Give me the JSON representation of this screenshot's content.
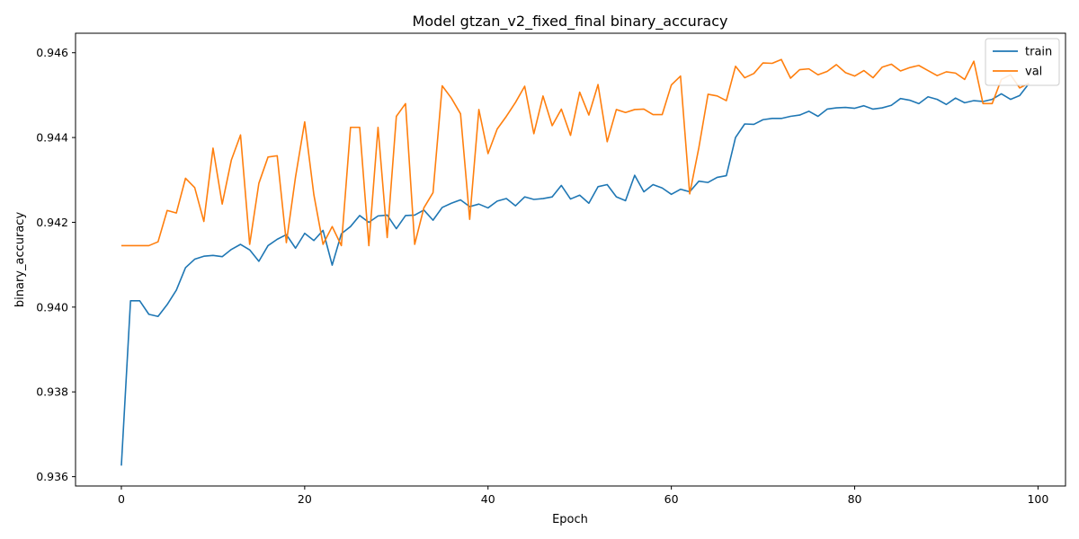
{
  "chart_data": {
    "type": "line",
    "title": "Model gtzan_v2_fixed_final binary_accuracy",
    "xlabel": "Epoch",
    "ylabel": "binary_accuracy",
    "xlim": [
      -5,
      103
    ],
    "ylim": [
      0.93578,
      0.94646
    ],
    "xticks": [
      0,
      20,
      40,
      60,
      80,
      100
    ],
    "yticks": [
      0.936,
      0.938,
      0.94,
      0.942,
      0.944,
      0.946
    ],
    "ytick_labels": [
      "0.936",
      "0.938",
      "0.940",
      "0.942",
      "0.944",
      "0.946"
    ],
    "grid": false,
    "legend_position": "top-right",
    "series": [
      {
        "name": "train",
        "color": "#1f77b4",
        "values": [
          0.93626,
          0.94015,
          0.94015,
          0.93983,
          0.93978,
          0.94006,
          0.9404,
          0.94093,
          0.94113,
          0.9412,
          0.94122,
          0.94119,
          0.94136,
          0.94148,
          0.94135,
          0.94108,
          0.94145,
          0.9416,
          0.94171,
          0.94139,
          0.94174,
          0.94157,
          0.94181,
          0.94099,
          0.94173,
          0.9419,
          0.94216,
          0.942,
          0.94215,
          0.94217,
          0.94185,
          0.94216,
          0.94217,
          0.94229,
          0.94205,
          0.94235,
          0.94245,
          0.94253,
          0.94237,
          0.94243,
          0.94234,
          0.9425,
          0.94256,
          0.94239,
          0.9426,
          0.94254,
          0.94256,
          0.9426,
          0.94287,
          0.94255,
          0.94264,
          0.94245,
          0.94284,
          0.94289,
          0.9426,
          0.94251,
          0.94311,
          0.94272,
          0.94289,
          0.94281,
          0.94266,
          0.94278,
          0.94272,
          0.94297,
          0.94294,
          0.94306,
          0.9431,
          0.944,
          0.94432,
          0.94431,
          0.94442,
          0.94445,
          0.94445,
          0.9445,
          0.94453,
          0.94462,
          0.9445,
          0.94467,
          0.9447,
          0.94471,
          0.94469,
          0.94475,
          0.94467,
          0.9447,
          0.94476,
          0.94492,
          0.94488,
          0.9448,
          0.94496,
          0.9449,
          0.94478,
          0.94493,
          0.94482,
          0.94487,
          0.94485,
          0.9449,
          0.94503,
          0.9449,
          0.94499,
          0.94527
        ]
      },
      {
        "name": "val",
        "color": "#ff7f0e",
        "values": [
          0.94145,
          0.94145,
          0.94145,
          0.94145,
          0.94154,
          0.94228,
          0.94222,
          0.94304,
          0.94282,
          0.94202,
          0.94375,
          0.94243,
          0.94347,
          0.94406,
          0.94148,
          0.94292,
          0.94354,
          0.94357,
          0.94152,
          0.94307,
          0.94437,
          0.94265,
          0.94148,
          0.9419,
          0.94145,
          0.94424,
          0.94424,
          0.94145,
          0.94424,
          0.94164,
          0.9445,
          0.9448,
          0.94148,
          0.94234,
          0.9427,
          0.94522,
          0.94493,
          0.94456,
          0.94207,
          0.94466,
          0.94362,
          0.9442,
          0.9445,
          0.94483,
          0.94521,
          0.94409,
          0.94498,
          0.94428,
          0.94467,
          0.94405,
          0.94507,
          0.94453,
          0.94525,
          0.9439,
          0.94466,
          0.94459,
          0.94466,
          0.94467,
          0.94454,
          0.94454,
          0.94524,
          0.94545,
          0.94267,
          0.94376,
          0.94502,
          0.94498,
          0.94487,
          0.94568,
          0.94541,
          0.94551,
          0.94576,
          0.94575,
          0.94584,
          0.9454,
          0.9456,
          0.94562,
          0.94548,
          0.94556,
          0.94572,
          0.94553,
          0.94545,
          0.94558,
          0.94541,
          0.94566,
          0.94573,
          0.94557,
          0.94565,
          0.9457,
          0.94558,
          0.94546,
          0.94555,
          0.94552,
          0.94537,
          0.9458,
          0.9448,
          0.9448,
          0.94537,
          0.94548,
          0.94517,
          0.94528
        ]
      }
    ]
  }
}
